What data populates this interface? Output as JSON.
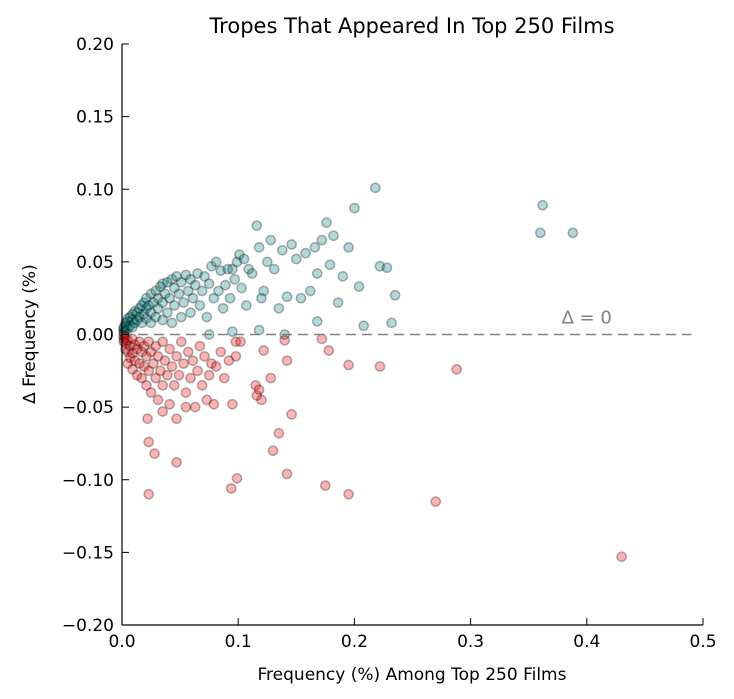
{
  "chart_data": {
    "type": "scatter",
    "title": "Tropes That Appeared In Top 250 Films",
    "xlabel": "Frequency (%) Among Top 250 Films",
    "ylabel": "∆ Frequency (%)",
    "xlim": [
      0.0,
      0.5
    ],
    "ylim": [
      -0.2,
      0.2
    ],
    "x_ticks": [
      "0.0",
      "0.1",
      "0.2",
      "0.3",
      "0.4",
      "0.5"
    ],
    "y_ticks": [
      "−0.20",
      "−0.15",
      "−0.10",
      "−0.05",
      "0.00",
      "0.05",
      "0.10",
      "0.15",
      "0.20"
    ],
    "grid": false,
    "reference_line": {
      "y": 0,
      "style": "dashed",
      "color": "#808080",
      "label": "∆ = 0"
    },
    "series": [
      {
        "color": "#008080",
        "points": [
          [
            0.0015,
            0.001
          ],
          [
            0.0015,
            0.002
          ],
          [
            0.0015,
            0.004
          ],
          [
            0.0015,
            0.005
          ],
          [
            0.003,
            0.003
          ],
          [
            0.003,
            0.006
          ],
          [
            0.003,
            0.008
          ],
          [
            0.005,
            0.004
          ],
          [
            0.005,
            0.009
          ],
          [
            0.005,
            0.011
          ],
          [
            0.007,
            0.006
          ],
          [
            0.007,
            0.012
          ],
          [
            0.009,
            0.005
          ],
          [
            0.009,
            0.01
          ],
          [
            0.009,
            0.014
          ],
          [
            0.011,
            0.008
          ],
          [
            0.011,
            0.016
          ],
          [
            0.013,
            0.01
          ],
          [
            0.013,
            0.015
          ],
          [
            0.015,
            0.012
          ],
          [
            0.015,
            0.018
          ],
          [
            0.017,
            0.008
          ],
          [
            0.017,
            0.02
          ],
          [
            0.019,
            0.014
          ],
          [
            0.019,
            0.022
          ],
          [
            0.021,
            0.011
          ],
          [
            0.021,
            0.018
          ],
          [
            0.021,
            0.025
          ],
          [
            0.023,
            0.02
          ],
          [
            0.025,
            0.008
          ],
          [
            0.025,
            0.015
          ],
          [
            0.025,
            0.028
          ],
          [
            0.027,
            0.022
          ],
          [
            0.029,
            0.012
          ],
          [
            0.029,
            0.03
          ],
          [
            0.031,
            0.018
          ],
          [
            0.031,
            0.025
          ],
          [
            0.033,
            0.033
          ],
          [
            0.035,
            0.01
          ],
          [
            0.035,
            0.022
          ],
          [
            0.035,
            0.035
          ],
          [
            0.037,
            0.028
          ],
          [
            0.039,
            0.015
          ],
          [
            0.039,
            0.036
          ],
          [
            0.041,
            0.025
          ],
          [
            0.043,
            0.038
          ],
          [
            0.043,
            0.008
          ],
          [
            0.045,
            0.02
          ],
          [
            0.045,
            0.032
          ],
          [
            0.047,
            0.04
          ],
          [
            0.049,
            0.028
          ],
          [
            0.051,
            0.012
          ],
          [
            0.051,
            0.036
          ],
          [
            0.053,
            0.022
          ],
          [
            0.055,
            0.041
          ],
          [
            0.057,
            0.03
          ],
          [
            0.059,
            0.015
          ],
          [
            0.059,
            0.038
          ],
          [
            0.061,
            0.025
          ],
          [
            0.063,
            0.034
          ],
          [
            0.065,
            0.042
          ],
          [
            0.067,
            0.02
          ],
          [
            0.069,
            0.03
          ],
          [
            0.071,
            0.04
          ],
          [
            0.073,
            0.012
          ],
          [
            0.075,
            0.035
          ],
          [
            0.077,
            0.047
          ],
          [
            0.079,
            0.025
          ],
          [
            0.081,
            0.05
          ],
          [
            0.083,
            0.03
          ],
          [
            0.085,
            0.044
          ],
          [
            0.087,
            0.018
          ],
          [
            0.089,
            0.034
          ],
          [
            0.091,
            0.045
          ],
          [
            0.093,
            0.025
          ],
          [
            0.095,
            0.045
          ],
          [
            0.097,
            0.038
          ],
          [
            0.099,
            0.05
          ],
          [
            0.101,
            0.055
          ],
          [
            0.103,
            0.032
          ],
          [
            0.105,
            0.052
          ],
          [
            0.107,
            0.02
          ],
          [
            0.109,
            0.045
          ],
          [
            0.112,
            0.042
          ],
          [
            0.116,
            0.075
          ],
          [
            0.118,
            0.06
          ],
          [
            0.12,
            0.025
          ],
          [
            0.122,
            0.03
          ],
          [
            0.125,
            0.05
          ],
          [
            0.128,
            0.065
          ],
          [
            0.131,
            0.045
          ],
          [
            0.135,
            0.018
          ],
          [
            0.138,
            0.058
          ],
          [
            0.142,
            0.026
          ],
          [
            0.146,
            0.062
          ],
          [
            0.15,
            0.052
          ],
          [
            0.154,
            0.025
          ],
          [
            0.158,
            0.056
          ],
          [
            0.162,
            0.03
          ],
          [
            0.166,
            0.06
          ],
          [
            0.168,
            0.042
          ],
          [
            0.172,
            0.065
          ],
          [
            0.176,
            0.077
          ],
          [
            0.179,
            0.048
          ],
          [
            0.182,
            0.068
          ],
          [
            0.186,
            0.022
          ],
          [
            0.19,
            0.04
          ],
          [
            0.195,
            0.06
          ],
          [
            0.2,
            0.087
          ],
          [
            0.204,
            0.033
          ],
          [
            0.208,
            0.006
          ],
          [
            0.218,
            0.101
          ],
          [
            0.222,
            0.047
          ],
          [
            0.228,
            0.046
          ],
          [
            0.232,
            0.008
          ],
          [
            0.235,
            0.027
          ],
          [
            0.362,
            0.089
          ],
          [
            0.36,
            0.07
          ],
          [
            0.388,
            0.07
          ],
          [
            0.118,
            0.003
          ],
          [
            0.14,
            0.0
          ],
          [
            0.168,
            0.009
          ],
          [
            0.095,
            0.002
          ],
          [
            0.075,
            0.0
          ]
        ]
      },
      {
        "color": "#ff0000",
        "points": [
          [
            0.0015,
            -0.001
          ],
          [
            0.0015,
            -0.003
          ],
          [
            0.0015,
            -0.005
          ],
          [
            0.003,
            -0.002
          ],
          [
            0.003,
            -0.006
          ],
          [
            0.003,
            -0.01
          ],
          [
            0.005,
            -0.004
          ],
          [
            0.005,
            -0.012
          ],
          [
            0.005,
            -0.02
          ],
          [
            0.007,
            -0.008
          ],
          [
            0.007,
            -0.016
          ],
          [
            0.009,
            -0.003
          ],
          [
            0.009,
            -0.013
          ],
          [
            0.009,
            -0.024
          ],
          [
            0.011,
            -0.007
          ],
          [
            0.011,
            -0.018
          ],
          [
            0.013,
            -0.01
          ],
          [
            0.013,
            -0.028
          ],
          [
            0.015,
            -0.005
          ],
          [
            0.015,
            -0.02
          ],
          [
            0.017,
            -0.012
          ],
          [
            0.017,
            -0.03
          ],
          [
            0.019,
            -0.008
          ],
          [
            0.019,
            -0.022
          ],
          [
            0.021,
            -0.015
          ],
          [
            0.021,
            -0.035
          ],
          [
            0.023,
            -0.005
          ],
          [
            0.023,
            -0.025
          ],
          [
            0.025,
            -0.012
          ],
          [
            0.025,
            -0.04
          ],
          [
            0.027,
            -0.02
          ],
          [
            0.029,
            -0.008
          ],
          [
            0.029,
            -0.03
          ],
          [
            0.031,
            -0.015
          ],
          [
            0.031,
            -0.045
          ],
          [
            0.033,
            -0.025
          ],
          [
            0.035,
            -0.005
          ],
          [
            0.035,
            -0.035
          ],
          [
            0.037,
            -0.018
          ],
          [
            0.039,
            -0.028
          ],
          [
            0.041,
            -0.01
          ],
          [
            0.041,
            -0.048
          ],
          [
            0.043,
            -0.022
          ],
          [
            0.045,
            -0.035
          ],
          [
            0.047,
            -0.015
          ],
          [
            0.049,
            -0.028
          ],
          [
            0.051,
            -0.005
          ],
          [
            0.053,
            -0.02
          ],
          [
            0.055,
            -0.04
          ],
          [
            0.057,
            -0.012
          ],
          [
            0.059,
            -0.03
          ],
          [
            0.061,
            -0.018
          ],
          [
            0.063,
            -0.05
          ],
          [
            0.065,
            -0.025
          ],
          [
            0.067,
            -0.008
          ],
          [
            0.069,
            -0.035
          ],
          [
            0.071,
            -0.015
          ],
          [
            0.073,
            -0.045
          ],
          [
            0.075,
            -0.028
          ],
          [
            0.077,
            -0.02
          ],
          [
            0.079,
            -0.048
          ],
          [
            0.081,
            -0.022
          ],
          [
            0.085,
            -0.012
          ],
          [
            0.088,
            -0.03
          ],
          [
            0.092,
            -0.018
          ],
          [
            0.095,
            -0.048
          ],
          [
            0.098,
            -0.005
          ],
          [
            0.098,
            -0.015
          ],
          [
            0.102,
            -0.005
          ],
          [
            0.115,
            -0.035
          ],
          [
            0.116,
            -0.042
          ],
          [
            0.118,
            -0.038
          ],
          [
            0.12,
            -0.045
          ],
          [
            0.122,
            -0.011
          ],
          [
            0.128,
            -0.03
          ],
          [
            0.13,
            -0.08
          ],
          [
            0.135,
            -0.068
          ],
          [
            0.14,
            -0.004
          ],
          [
            0.142,
            -0.018
          ],
          [
            0.142,
            -0.096
          ],
          [
            0.146,
            -0.055
          ],
          [
            0.172,
            -0.003
          ],
          [
            0.175,
            -0.104
          ],
          [
            0.178,
            -0.011
          ],
          [
            0.195,
            -0.021
          ],
          [
            0.195,
            -0.11
          ],
          [
            0.222,
            -0.022
          ],
          [
            0.27,
            -0.115
          ],
          [
            0.288,
            -0.024
          ],
          [
            0.43,
            -0.153
          ],
          [
            0.094,
            -0.106
          ],
          [
            0.099,
            -0.099
          ],
          [
            0.047,
            -0.088
          ],
          [
            0.023,
            -0.074
          ],
          [
            0.023,
            -0.11
          ],
          [
            0.028,
            -0.082
          ],
          [
            0.035,
            -0.053
          ],
          [
            0.047,
            -0.058
          ],
          [
            0.055,
            -0.05
          ],
          [
            0.022,
            -0.058
          ]
        ]
      }
    ]
  }
}
